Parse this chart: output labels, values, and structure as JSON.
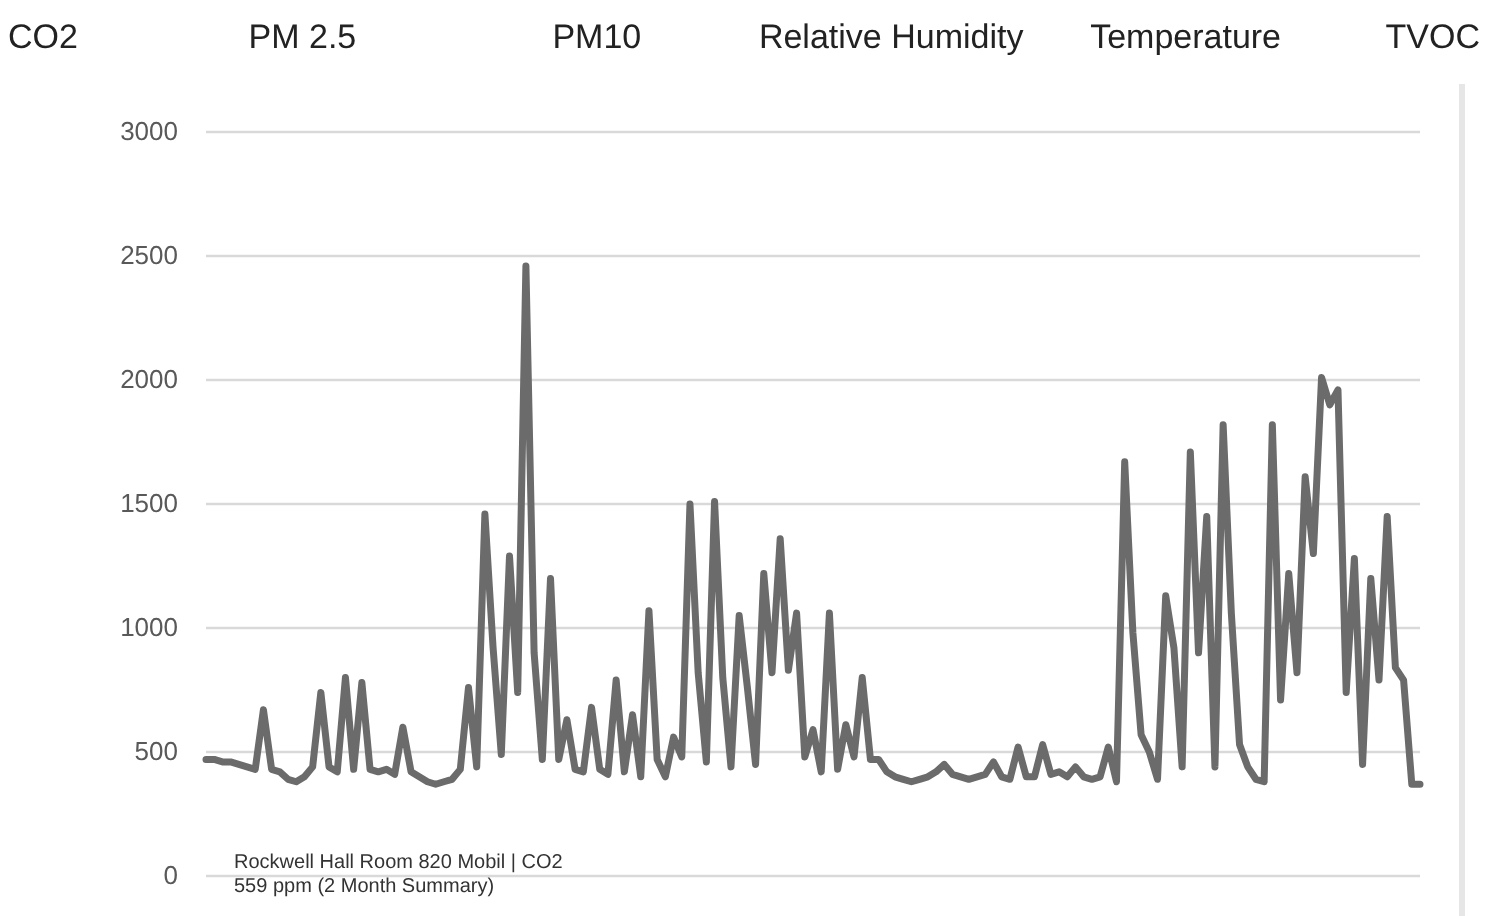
{
  "chart_data": {
    "type": "line",
    "categories": [
      null,
      null,
      null,
      null,
      null,
      null,
      null,
      null,
      null,
      null,
      null,
      null,
      null,
      null,
      null,
      null,
      null,
      null,
      null,
      null,
      null,
      null,
      null,
      null,
      null,
      null,
      null,
      null,
      null,
      null,
      null,
      null,
      null,
      null,
      null,
      null,
      null,
      null,
      null,
      null,
      null,
      null,
      null,
      null,
      null,
      null,
      null,
      null,
      null,
      null,
      null,
      null,
      null,
      null,
      null,
      null,
      null,
      null,
      null,
      null,
      null,
      null,
      null,
      null,
      null,
      null,
      null,
      null,
      null,
      null,
      null,
      null,
      null,
      null,
      null,
      null,
      null,
      null,
      null,
      null,
      null,
      null,
      null,
      null,
      null,
      null,
      null,
      null,
      null,
      null,
      null,
      null,
      null,
      null,
      null,
      null,
      null,
      null,
      null,
      null,
      null,
      null,
      null,
      null,
      null,
      null,
      null,
      null,
      null,
      null,
      null,
      null,
      null,
      null,
      null,
      null,
      null,
      null,
      null,
      null,
      null,
      null,
      null,
      null,
      null,
      null,
      null,
      null,
      null,
      null,
      null,
      null,
      null,
      null,
      null,
      null,
      null,
      null,
      null,
      null,
      null,
      null,
      null,
      null,
      null,
      null,
      null,
      null,
      null
    ],
    "series": [
      {
        "color": "#6b6b6b",
        "values": [
          470,
          470,
          460,
          460,
          450,
          440,
          430,
          670,
          430,
          420,
          390,
          380,
          400,
          440,
          740,
          440,
          420,
          800,
          430,
          780,
          430,
          420,
          430,
          410,
          600,
          420,
          400,
          380,
          370,
          380,
          390,
          430,
          760,
          440,
          1460,
          920,
          490,
          1290,
          740,
          2460,
          900,
          470,
          1200,
          470,
          630,
          430,
          420,
          680,
          430,
          410,
          790,
          420,
          650,
          400,
          1070,
          470,
          400,
          560,
          480,
          1500,
          820,
          460,
          1510,
          800,
          440,
          1050,
          760,
          450,
          1220,
          820,
          1360,
          830,
          1060,
          480,
          590,
          420,
          1060,
          430,
          610,
          480,
          800,
          470,
          470,
          420,
          400,
          390,
          380,
          390,
          400,
          420,
          450,
          410,
          400,
          390,
          400,
          410,
          460,
          400,
          390,
          520,
          400,
          400,
          530,
          410,
          420,
          400,
          440,
          400,
          390,
          400,
          520,
          380,
          1670,
          980,
          570,
          500,
          390,
          1130,
          920,
          440,
          1710,
          900,
          1450,
          440,
          1820,
          1060,
          530,
          440,
          390,
          380,
          1820,
          710,
          1220,
          820,
          1610,
          1300,
          2010,
          1900,
          1960,
          740,
          1280,
          450,
          1200,
          790,
          1450,
          840,
          790,
          370,
          370
        ]
      }
    ],
    "ylim": [
      0,
      3000
    ],
    "yticks": [
      0,
      500,
      1000,
      1500,
      2000,
      2500,
      3000
    ],
    "grid": "y",
    "marker": "none",
    "line_style": "solid",
    "annotations": [
      "CO2",
      "PM 2.5",
      "PM10",
      "Relative Humidity",
      "Temperature",
      "TVOC",
      "Rockwell Hall Room 820 Mobil | CO2",
      "559 ppm (2 Month Summary)"
    ]
  }
}
